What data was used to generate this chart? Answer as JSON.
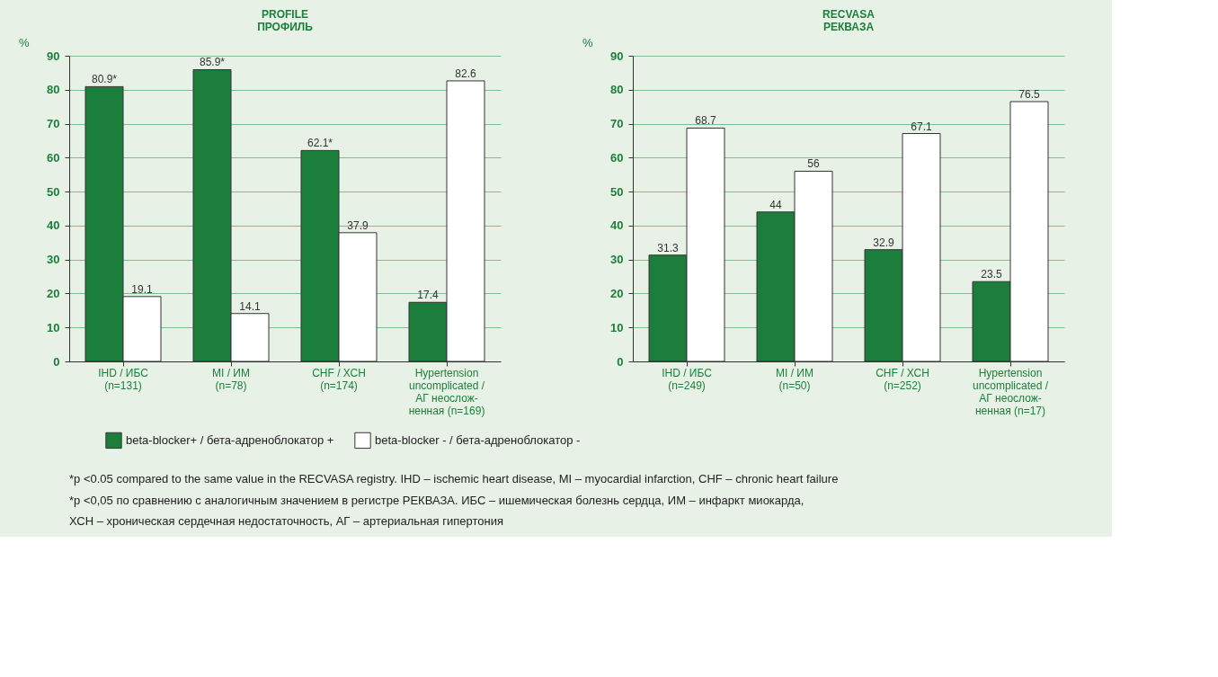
{
  "chart_data": [
    {
      "type": "bar",
      "title": "PROFILE\nПРОФИЛЬ",
      "ylabel": "%",
      "categories": [
        "IHD / ИБС\n(n=131)",
        "MI / ИМ\n(n=78)",
        "CHF / ХСН\n(n=174)",
        "Hypertension\nuncomplicated /\nАГ неослож-\nненная (n=169)"
      ],
      "series": [
        {
          "name": "beta-blocker+ / бета-адреноблокатор +",
          "color": "#1b7f3b",
          "values": [
            80.9,
            85.9,
            62.1,
            17.4
          ],
          "value_labels": [
            "80.9*",
            "85.9*",
            "62.1*",
            "17.4"
          ]
        },
        {
          "name": "beta-blocker - / бета-адреноблокатор -",
          "color": "#ffffff",
          "values": [
            19.1,
            14.1,
            37.9,
            82.6
          ],
          "value_labels": [
            "19.1",
            "14.1",
            "37.9",
            "82.6"
          ]
        }
      ],
      "ylim": [
        0,
        90
      ],
      "yticks": [
        0,
        10,
        20,
        30,
        40,
        50,
        60,
        70,
        80,
        90
      ],
      "grid": "y",
      "legend": "bottom",
      "annotations": [
        "*p <0.05 compared to the same value in the RECVASA registry. IHD – ischemic heart disease, MI – myocardial infarction, CHF – chronic heart failure",
        "*p <0,05 по сравнению с аналогичным значением в регистре РЕКВАЗА. ИБС – ишемическая болезнь сердца, ИМ – инфаркт миокарда,\nХСН – хроническая сердечная недостаточность, АГ – артериальная гипертония"
      ]
    },
    {
      "type": "bar",
      "title": "RECVASA\nРЕКВАЗА",
      "ylabel": "%",
      "categories": [
        "IHD / ИБС\n(n=249)",
        "MI / ИМ\n(n=50)",
        "CHF / ХСН\n(n=252)",
        "Hypertension\nuncomplicated /\nАГ неослож-\nненная (n=17)"
      ],
      "series": [
        {
          "name": "beta-blocker+ / бета-адреноблокатор +",
          "color": "#1b7f3b",
          "values": [
            31.3,
            44,
            32.9,
            23.5
          ]
        },
        {
          "name": "beta-blocker - / бета-адреноблокатор -",
          "color": "#ffffff",
          "values": [
            68.7,
            56,
            67.1,
            76.5
          ]
        }
      ],
      "ylim": [
        0,
        90
      ],
      "yticks": [
        0,
        10,
        20,
        30,
        40,
        50,
        60,
        70,
        80,
        90
      ],
      "grid": "y",
      "legend": "bottom",
      "data_labels": true
    }
  ]
}
